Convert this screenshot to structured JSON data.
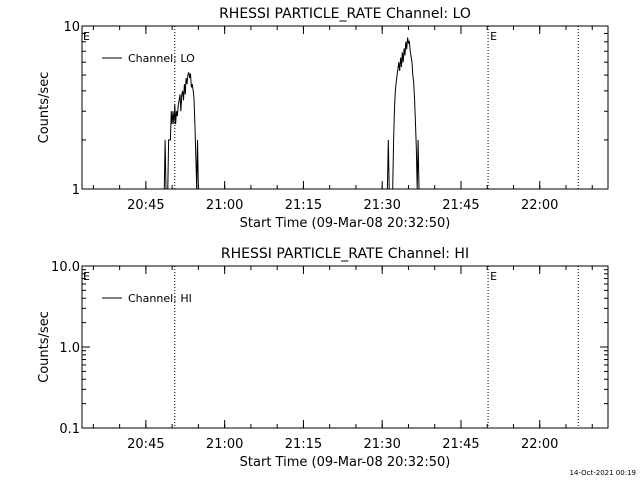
{
  "footer": {
    "timestamp": "14-Oct-2021 00:19"
  },
  "chart_data": [
    {
      "type": "line",
      "title": "RHESSI PARTICLE_RATE Channel: LO",
      "xlabel": "Start Time (09-Mar-08 20:32:50)",
      "ylabel": "Counts/sec",
      "yscale": "log",
      "ylim": [
        1,
        10
      ],
      "xlim": [
        "20:32:50",
        "22:13:00"
      ],
      "y_ticks": [
        {
          "v": 1,
          "label": "1"
        },
        {
          "v": 10,
          "label": "10"
        }
      ],
      "x_ticks": [
        {
          "t": "20:45",
          "label": "20:45"
        },
        {
          "t": "21:00",
          "label": "21:00"
        },
        {
          "t": "21:15",
          "label": "21:15"
        },
        {
          "t": "21:30",
          "label": "21:30"
        },
        {
          "t": "21:45",
          "label": "21:45"
        },
        {
          "t": "22:00",
          "label": "22:00"
        }
      ],
      "legend": {
        "entries": [
          "Channel: LO"
        ],
        "position": "top-left"
      },
      "markers": [
        {
          "t": "20:50:30",
          "label": ""
        },
        {
          "t": "21:50:10",
          "label": "E"
        },
        {
          "t": "22:07:20",
          "label": ""
        }
      ],
      "edge_label": "E",
      "series": [
        {
          "name": "Channel: LO",
          "points": [
            [
              "20:48:30",
              1.0
            ],
            [
              "20:48:40",
              2.0
            ],
            [
              "20:48:50",
              1.0
            ],
            [
              "20:49:10",
              1.0
            ],
            [
              "20:49:20",
              2.0
            ],
            [
              "20:49:40",
              2.0
            ],
            [
              "20:49:50",
              3.0
            ],
            [
              "20:50:00",
              2.5
            ],
            [
              "20:50:10",
              3.0
            ],
            [
              "20:50:20",
              2.5
            ],
            [
              "20:50:30",
              3.3
            ],
            [
              "20:50:40",
              2.5
            ],
            [
              "20:50:50",
              3.0
            ],
            [
              "20:51:00",
              2.8
            ],
            [
              "20:51:10",
              3.3
            ],
            [
              "20:51:20",
              3.5
            ],
            [
              "20:51:30",
              3.8
            ],
            [
              "20:51:40",
              3.0
            ],
            [
              "20:51:50",
              3.8
            ],
            [
              "20:52:00",
              4.0
            ],
            [
              "20:52:10",
              3.5
            ],
            [
              "20:52:20",
              4.4
            ],
            [
              "20:52:30",
              3.8
            ],
            [
              "20:52:40",
              4.8
            ],
            [
              "20:52:50",
              4.4
            ],
            [
              "20:53:00",
              5.0
            ],
            [
              "20:53:10",
              5.2
            ],
            [
              "20:53:20",
              4.8
            ],
            [
              "20:53:30",
              5.1
            ],
            [
              "20:53:40",
              4.2
            ],
            [
              "20:53:50",
              4.4
            ],
            [
              "20:54:00",
              4.0
            ],
            [
              "20:54:10",
              3.6
            ],
            [
              "20:54:20",
              2.5
            ],
            [
              "20:54:30",
              1.6
            ],
            [
              "20:54:40",
              1.0
            ],
            [
              "20:54:50",
              2.0
            ],
            [
              "20:55:00",
              1.0
            ],
            [
              "20:55:10",
              1.0
            ],
            [
              "21:31:00",
              1.0
            ],
            [
              "21:31:10",
              2.0
            ],
            [
              "21:31:20",
              1.0
            ],
            [
              "21:32:00",
              1.0
            ],
            [
              "21:32:10",
              2.0
            ],
            [
              "21:32:20",
              3.0
            ],
            [
              "21:32:30",
              4.0
            ],
            [
              "21:32:40",
              4.5
            ],
            [
              "21:32:50",
              5.0
            ],
            [
              "21:33:00",
              5.5
            ],
            [
              "21:33:10",
              6.0
            ],
            [
              "21:33:20",
              5.3
            ],
            [
              "21:33:30",
              6.4
            ],
            [
              "21:33:40",
              5.6
            ],
            [
              "21:33:50",
              6.9
            ],
            [
              "21:34:00",
              6.0
            ],
            [
              "21:34:10",
              7.3
            ],
            [
              "21:34:20",
              6.6
            ],
            [
              "21:34:30",
              8.0
            ],
            [
              "21:34:40",
              7.2
            ],
            [
              "21:34:50",
              8.5
            ],
            [
              "21:35:00",
              7.8
            ],
            [
              "21:35:10",
              8.1
            ],
            [
              "21:35:20",
              7.0
            ],
            [
              "21:35:30",
              6.5
            ],
            [
              "21:35:40",
              6.0
            ],
            [
              "21:35:50",
              5.0
            ],
            [
              "21:36:00",
              4.5
            ],
            [
              "21:36:10",
              3.5
            ],
            [
              "21:36:20",
              2.5
            ],
            [
              "21:36:30",
              1.8
            ],
            [
              "21:36:40",
              1.0
            ],
            [
              "21:36:50",
              2.0
            ],
            [
              "21:37:00",
              1.0
            ],
            [
              "21:37:10",
              1.0
            ]
          ]
        }
      ]
    },
    {
      "type": "line",
      "title": "RHESSI PARTICLE_RATE Channel: HI",
      "xlabel": "Start Time (09-Mar-08 20:32:50)",
      "ylabel": "Counts/sec",
      "yscale": "log",
      "ylim": [
        0.1,
        10
      ],
      "xlim": [
        "20:32:50",
        "22:13:00"
      ],
      "y_ticks": [
        {
          "v": 0.1,
          "label": "0.1"
        },
        {
          "v": 1,
          "label": "1.0"
        },
        {
          "v": 10,
          "label": "10.0"
        }
      ],
      "x_ticks": [
        {
          "t": "20:45",
          "label": "20:45"
        },
        {
          "t": "21:00",
          "label": "21:00"
        },
        {
          "t": "21:15",
          "label": "21:15"
        },
        {
          "t": "21:30",
          "label": "21:30"
        },
        {
          "t": "21:45",
          "label": "21:45"
        },
        {
          "t": "22:00",
          "label": "22:00"
        }
      ],
      "legend": {
        "entries": [
          "Channel: HI"
        ],
        "position": "top-left"
      },
      "markers": [
        {
          "t": "20:50:30",
          "label": ""
        },
        {
          "t": "21:50:10",
          "label": "E"
        },
        {
          "t": "22:07:20",
          "label": ""
        }
      ],
      "edge_label": "E",
      "series": [
        {
          "name": "Channel: HI",
          "points": []
        }
      ]
    }
  ]
}
